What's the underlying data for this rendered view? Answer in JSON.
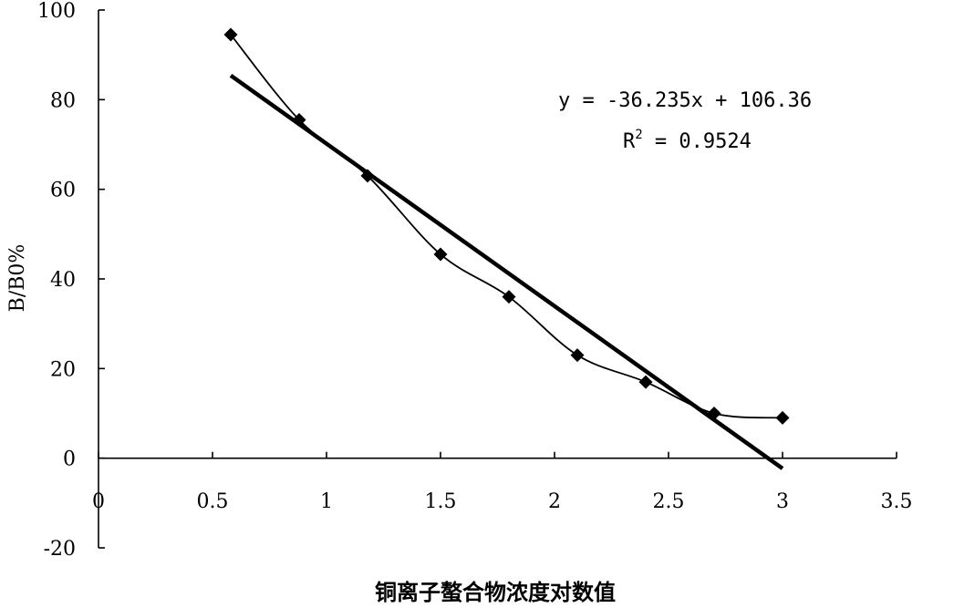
{
  "chart_data": {
    "type": "scatter",
    "xlim": [
      0,
      3.5
    ],
    "ylim": [
      -20,
      100
    ],
    "x_ticks": [
      0,
      0.5,
      1,
      1.5,
      2,
      2.5,
      3,
      3.5
    ],
    "x_tick_labels": [
      "0",
      "0.5",
      "1",
      "1.5",
      "2",
      "2.5",
      "3",
      "3.5"
    ],
    "y_ticks": [
      -20,
      0,
      20,
      40,
      60,
      80,
      100
    ],
    "y_tick_labels": [
      "-20",
      "0",
      "20",
      "40",
      "60",
      "80",
      "100"
    ],
    "xlabel": "铜离子螯合物浓度对数值",
    "ylabel": "B/B0%",
    "grid": false,
    "series": [
      {
        "style": "smooth-line-with-diamond-markers",
        "x": [
          0.58,
          0.88,
          1.18,
          1.5,
          1.8,
          2.1,
          2.4,
          2.7,
          3.0
        ],
        "y": [
          94.5,
          75.5,
          63.0,
          45.5,
          36.0,
          23.0,
          17.0,
          10.0,
          9.0
        ]
      },
      {
        "style": "linear-trendline",
        "x": [
          0.58,
          3.0
        ],
        "y": [
          85.4,
          -2.3
        ]
      }
    ],
    "annotation": {
      "equation": "y = -36.235x + 106.36",
      "r2_prefix": "R",
      "r2_sup": "2",
      "r2_value": " = 0.9524"
    }
  }
}
